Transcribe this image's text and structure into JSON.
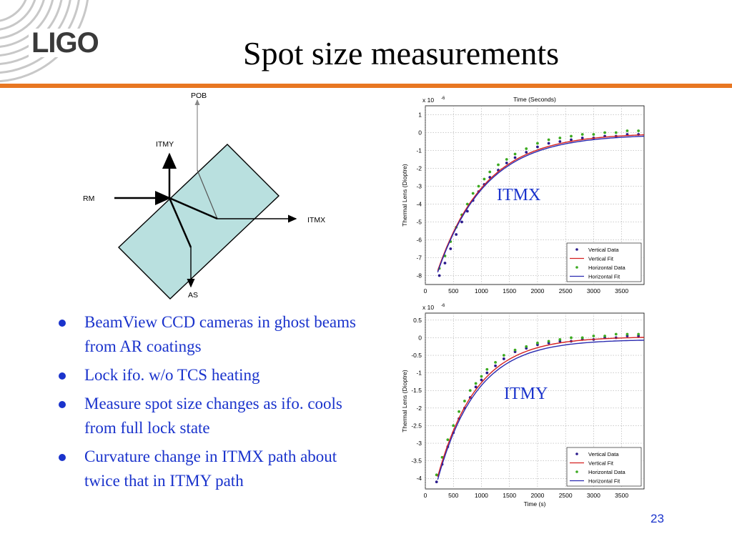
{
  "header": {
    "logo_text": "LIGO",
    "title": "Spot size measurements",
    "accent_color": "#e87722"
  },
  "diagram": {
    "labels": {
      "pob": "POB",
      "itmy": "ITMY",
      "rm": "RM",
      "itmx": "ITMX",
      "as": "AS"
    },
    "plate_color": "#b9e0df"
  },
  "bullets": [
    "BeamView CCD cameras in ghost beams from AR coatings",
    "Lock ifo. w/o TCS heating",
    "Measure spot size changes as ifo. cools from full lock state",
    "Curvature change in ITMX path about twice that in ITMY path"
  ],
  "chart_data": [
    {
      "type": "scatter",
      "title": "Time (Seconds)",
      "label": "ITMX",
      "ylabel": "Thermal Lens (Dioptre)",
      "xlabel": "",
      "y_exponent": "x 10",
      "y_exponent_power": "-6",
      "xlim": [
        0,
        3900
      ],
      "ylim": [
        -8.5,
        1.5
      ],
      "x_ticks": [
        0,
        500,
        1000,
        1500,
        2000,
        2500,
        3000,
        3500
      ],
      "y_ticks": [
        1,
        0,
        -1,
        -2,
        -3,
        -4,
        -5,
        -6,
        -7,
        -8
      ],
      "fit_model": {
        "a": -7.9,
        "tau": 850,
        "offset": -0.1
      },
      "legend_position": "bottom-right",
      "legend": [
        "Vertical Data",
        "Vertical Fit",
        "Horizontal Data",
        "Horizontal Fit"
      ],
      "series": [
        {
          "name": "Vertical Data",
          "color": "#2a1a8c",
          "x": [
            250,
            350,
            450,
            550,
            650,
            750,
            850,
            950,
            1050,
            1150,
            1300,
            1450,
            1600,
            1800,
            2000,
            2200,
            2400,
            2600,
            2800,
            3000,
            3200,
            3400,
            3600,
            3800
          ],
          "y": [
            -8.0,
            -7.3,
            -6.5,
            -5.7,
            -5.0,
            -4.4,
            -3.8,
            -3.3,
            -2.9,
            -2.5,
            -2.1,
            -1.7,
            -1.4,
            -1.1,
            -0.8,
            -0.6,
            -0.5,
            -0.4,
            -0.3,
            -0.3,
            -0.2,
            -0.2,
            -0.1,
            -0.1
          ]
        },
        {
          "name": "Vertical Fit",
          "color": "#d42020"
        },
        {
          "name": "Horizontal Data",
          "color": "#3caa20",
          "x": [
            250,
            350,
            450,
            550,
            650,
            750,
            850,
            950,
            1050,
            1150,
            1300,
            1450,
            1600,
            1800,
            2000,
            2200,
            2400,
            2600,
            2800,
            3000,
            3200,
            3400,
            3600,
            3800
          ],
          "y": [
            -7.6,
            -6.9,
            -6.1,
            -5.3,
            -4.6,
            -4.0,
            -3.4,
            -3.0,
            -2.6,
            -2.2,
            -1.8,
            -1.5,
            -1.2,
            -0.9,
            -0.6,
            -0.4,
            -0.3,
            -0.2,
            -0.1,
            -0.1,
            0.0,
            0.0,
            0.1,
            0.1
          ]
        },
        {
          "name": "Horizontal Fit",
          "color": "#2a2ab0"
        }
      ]
    },
    {
      "type": "scatter",
      "title": "",
      "label": "ITMY",
      "ylabel": "Thermal Lens (Dioptre)",
      "xlabel": "Time (s)",
      "y_exponent": "x 10",
      "y_exponent_power": "-6",
      "xlim": [
        0,
        3900
      ],
      "ylim": [
        -4.3,
        0.7
      ],
      "x_ticks": [
        0,
        500,
        1000,
        1500,
        2000,
        2500,
        3000,
        3500
      ],
      "y_ticks": [
        0.5,
        0,
        -0.5,
        -1,
        -1.5,
        -2,
        -2.5,
        -3,
        -3.5,
        -4
      ],
      "fit_model": {
        "a": -4.1,
        "tau": 700,
        "offset": -0.05
      },
      "legend_position": "bottom-right",
      "legend": [
        "Vertical Data",
        "Vertical Fit",
        "Horizontal Data",
        "Horizontal Fit"
      ],
      "series": [
        {
          "name": "Vertical Data",
          "color": "#2a1a8c",
          "x": [
            200,
            300,
            400,
            500,
            600,
            700,
            800,
            900,
            1000,
            1100,
            1250,
            1400,
            1600,
            1800,
            2000,
            2200,
            2400,
            2600,
            2800,
            3000,
            3200,
            3400,
            3600,
            3800
          ],
          "y": [
            -4.1,
            -3.6,
            -3.1,
            -2.7,
            -2.3,
            -2.0,
            -1.7,
            -1.4,
            -1.2,
            -1.0,
            -0.8,
            -0.6,
            -0.4,
            -0.3,
            -0.2,
            -0.15,
            -0.1,
            -0.1,
            -0.05,
            -0.05,
            0.0,
            0.0,
            0.05,
            0.05
          ]
        },
        {
          "name": "Vertical Fit",
          "color": "#d42020"
        },
        {
          "name": "Horizontal Data",
          "color": "#3caa20",
          "x": [
            200,
            300,
            400,
            500,
            600,
            700,
            800,
            900,
            1000,
            1100,
            1250,
            1400,
            1600,
            1800,
            2000,
            2200,
            2400,
            2600,
            2800,
            3000,
            3200,
            3400,
            3600,
            3800
          ],
          "y": [
            -3.9,
            -3.4,
            -2.9,
            -2.5,
            -2.1,
            -1.8,
            -1.5,
            -1.3,
            -1.1,
            -0.9,
            -0.7,
            -0.5,
            -0.35,
            -0.25,
            -0.15,
            -0.1,
            -0.05,
            0.0,
            0.0,
            0.05,
            0.05,
            0.1,
            0.1,
            0.1
          ]
        },
        {
          "name": "Horizontal Fit",
          "color": "#2a2ab0"
        }
      ]
    }
  ],
  "page_number": "23",
  "text_color": "#1a33cc"
}
